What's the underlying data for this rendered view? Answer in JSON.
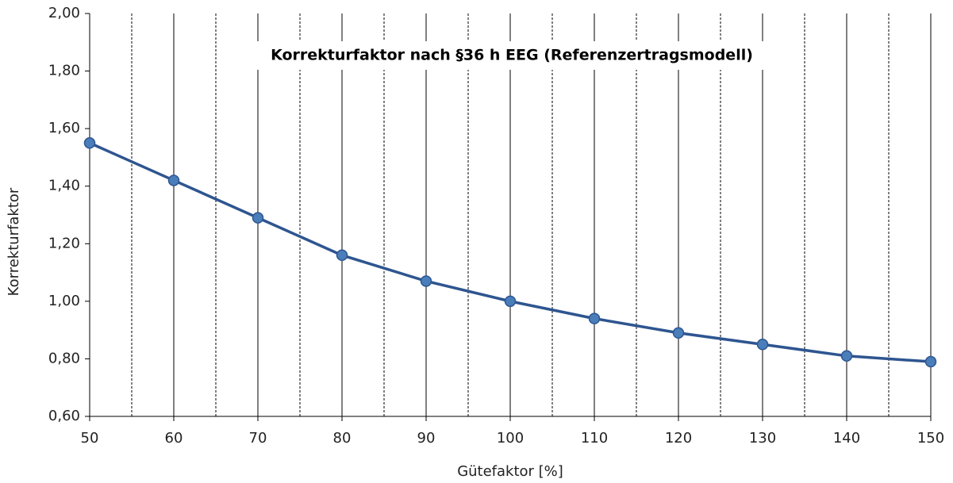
{
  "chart_data": {
    "type": "line",
    "title": "Korrekturfaktor nach §36 h EEG (Referenzertragsmodell)",
    "x_label": "Gütefaktor [%]",
    "y_label": "Korrekturfaktor",
    "x": [
      50,
      60,
      70,
      80,
      90,
      100,
      110,
      120,
      130,
      140,
      150
    ],
    "series": [
      {
        "color": "#2e5590",
        "values": [
          1.55,
          1.42,
          1.29,
          1.16,
          1.07,
          1.0,
          0.94,
          0.89,
          0.85,
          0.81,
          0.79
        ]
      }
    ],
    "xlim": [
      50,
      150
    ],
    "xticks": [
      50,
      60,
      70,
      80,
      90,
      100,
      110,
      120,
      130,
      140,
      150
    ],
    "xminorticks": [
      55,
      65,
      75,
      85,
      95,
      105,
      115,
      125,
      135,
      145
    ],
    "ylim": [
      0.6,
      2.0
    ],
    "yticks": [
      {
        "value": 0.6,
        "label": "0,60"
      },
      {
        "value": 0.8,
        "label": "0,80"
      },
      {
        "value": 1.0,
        "label": "1,00"
      },
      {
        "value": 1.2,
        "label": "1,20"
      },
      {
        "value": 1.4,
        "label": "1,40"
      },
      {
        "value": 1.6,
        "label": "1,60"
      },
      {
        "value": 1.8,
        "label": "1,80"
      },
      {
        "value": 2.0,
        "label": "2,00"
      }
    ],
    "grid": true,
    "marker_color": "#4a7ebb"
  }
}
